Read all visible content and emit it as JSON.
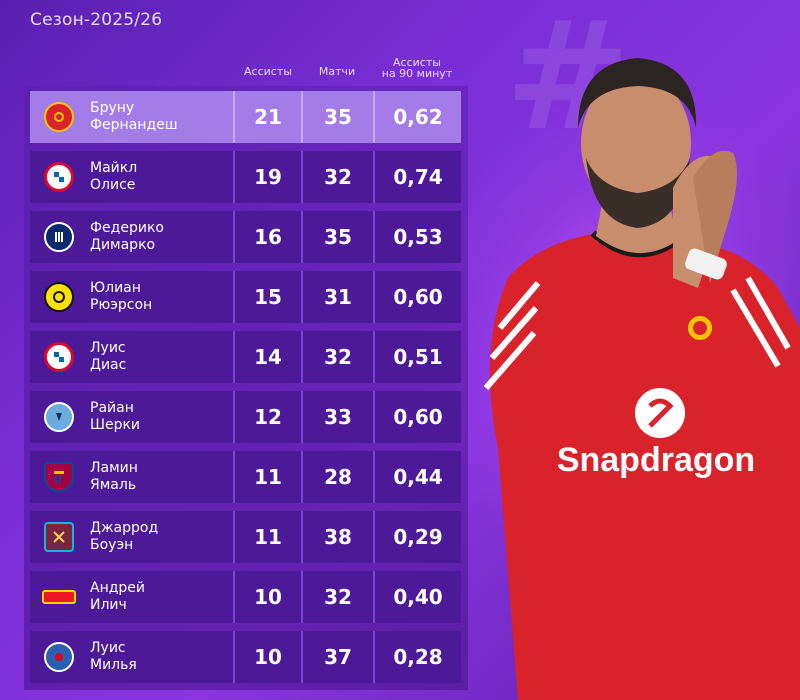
{
  "season": "Сезон-2025/26",
  "columns": {
    "assists": "Ассисты",
    "matches": "Матчи",
    "per90_line1": "Ассисты",
    "per90_line2": "на 90 минут"
  },
  "rows": [
    {
      "first": "Бруну",
      "last": "Фернандеш",
      "assists": "21",
      "matches": "35",
      "per90": "0,62",
      "crest": "manchester-united-crest"
    },
    {
      "first": "Майкл",
      "last": "Олисе",
      "assists": "19",
      "matches": "32",
      "per90": "0,74",
      "crest": "bayern-crest"
    },
    {
      "first": "Федерико",
      "last": "Димарко",
      "assists": "16",
      "matches": "35",
      "per90": "0,53",
      "crest": "inter-crest"
    },
    {
      "first": "Юлиан",
      "last": "Рюэрсон",
      "assists": "15",
      "matches": "31",
      "per90": "0,60",
      "crest": "dortmund-crest"
    },
    {
      "first": "Луис",
      "last": "Диас",
      "assists": "14",
      "matches": "32",
      "per90": "0,51",
      "crest": "bayern-crest"
    },
    {
      "first": "Райан",
      "last": "Шерки",
      "assists": "12",
      "matches": "33",
      "per90": "0,60",
      "crest": "manchester-city-crest"
    },
    {
      "first": "Ламин",
      "last": "Ямаль",
      "assists": "11",
      "matches": "28",
      "per90": "0,44",
      "crest": "barcelona-crest"
    },
    {
      "first": "Джаррод",
      "last": "Боуэн",
      "assists": "11",
      "matches": "38",
      "per90": "0,29",
      "crest": "west-ham-crest"
    },
    {
      "first": "Андрей",
      "last": "Илич",
      "assists": "10",
      "matches": "32",
      "per90": "0,40",
      "crest": "union-berlin-crest"
    },
    {
      "first": "Луис",
      "last": "Милья",
      "assists": "10",
      "matches": "37",
      "per90": "0,28",
      "crest": "getafe-crest"
    }
  ],
  "player_shirt_sponsor": "Snapdragon",
  "colors": {
    "background": "#7a2fd6",
    "row": "#4c1a98",
    "row_highlight": "#a47ce8",
    "shirt": "#d8232a"
  }
}
